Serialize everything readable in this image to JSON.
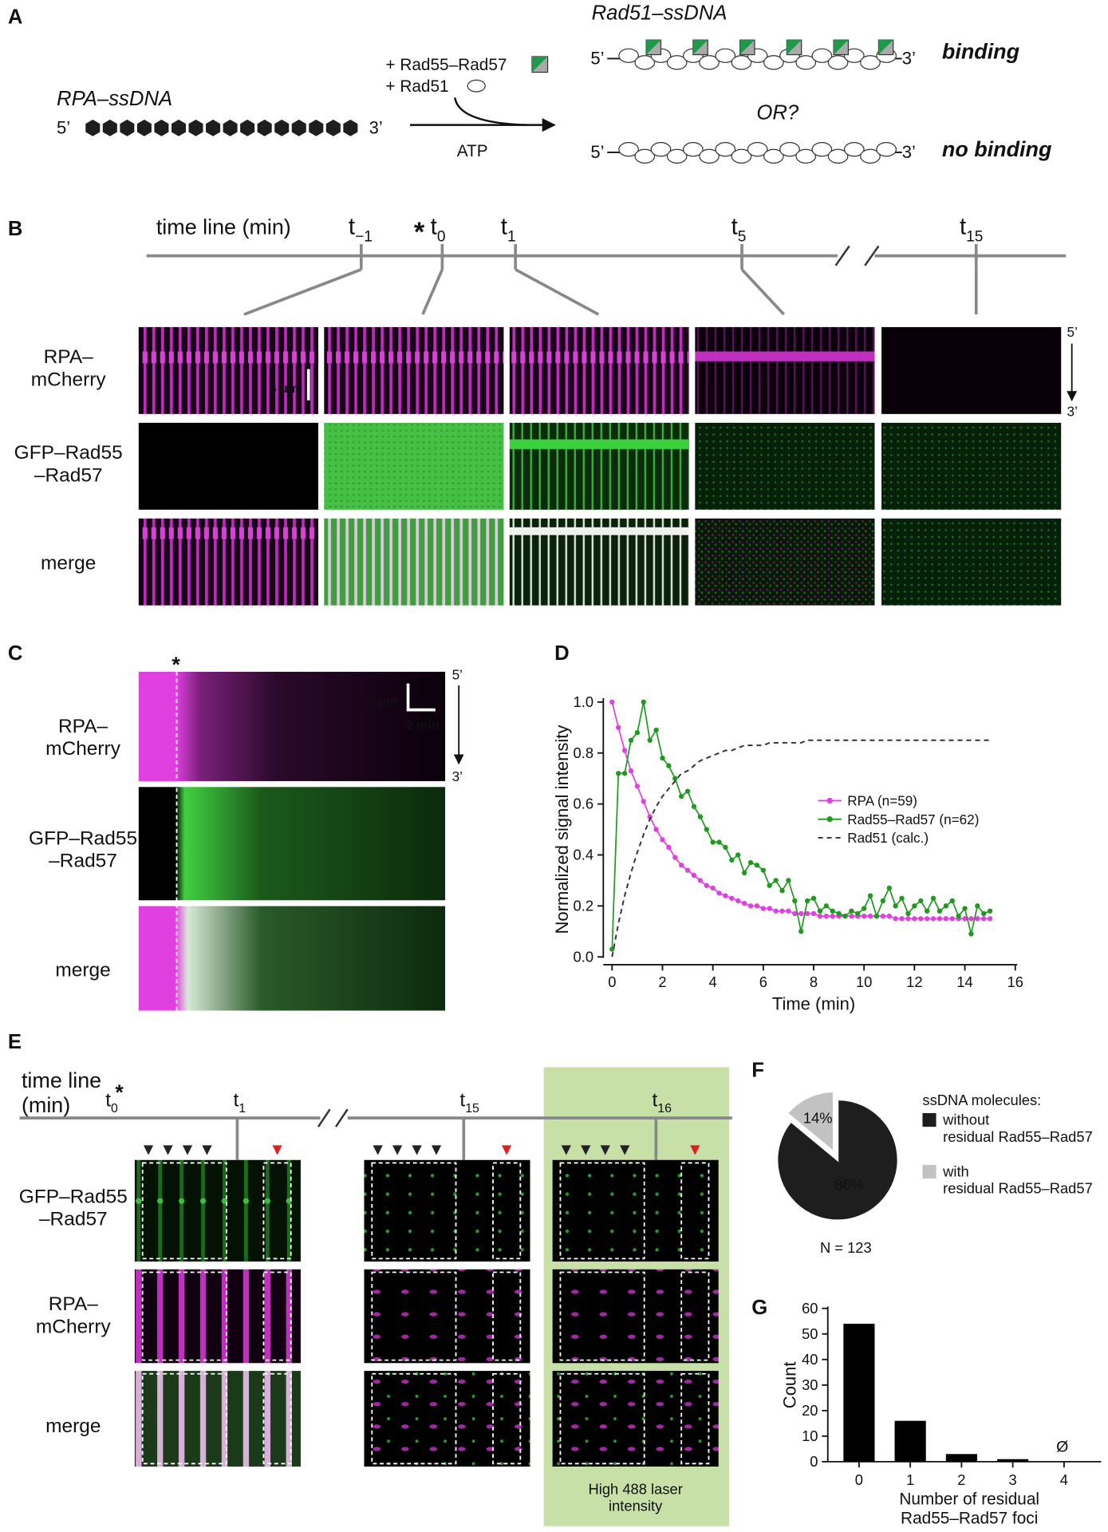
{
  "panels": {
    "A": {
      "letter": "A",
      "rpa_ssdna": "RPA–ssDNA",
      "rad51_ssdna": "Rad51–ssDNA",
      "five": "5’",
      "three": "3’",
      "add_rad55": "+ Rad55–Rad57",
      "add_rad51": "+ Rad51",
      "atp": "ATP",
      "binding": "binding",
      "or": "OR?",
      "no_binding": "no binding"
    },
    "B": {
      "letter": "B",
      "timeline": "time line (min)",
      "star": "*",
      "times": [
        {
          "t": "t",
          "sub": "−1"
        },
        {
          "t": "t",
          "sub": "0"
        },
        {
          "t": "t",
          "sub": "1"
        },
        {
          "t": "t",
          "sub": "5"
        },
        {
          "t": "t",
          "sub": "15"
        }
      ],
      "rows": [
        "RPA–\nmCherry",
        "GFP–Rad55\n–Rad57",
        "merge"
      ],
      "scale": "6 μm",
      "five": "5’",
      "three": "3’"
    },
    "C": {
      "letter": "C",
      "star": "*",
      "rows": [
        "RPA–\nmCherry",
        "GFP–Rad55\n–Rad57",
        "merge"
      ],
      "scale_y": "3 μm",
      "scale_x": "2 min",
      "five": "5’",
      "three": "3’"
    },
    "E": {
      "letter": "E",
      "timeline": "time line\n(min)",
      "star": "*",
      "times": [
        {
          "t": "t",
          "sub": "0"
        },
        {
          "t": "t",
          "sub": "1"
        },
        {
          "t": "t",
          "sub": "15"
        },
        {
          "t": "t",
          "sub": "16"
        }
      ],
      "rows": [
        "GFP–Rad55\n–Rad57",
        "RPA–\nmCherry",
        "merge"
      ],
      "high_laser": "High 488 laser\nintensity"
    }
  },
  "chart_data": [
    {
      "type": "line",
      "panel": "D",
      "xlabel": "Time (min)",
      "ylabel": "Normalized signal intensity",
      "xlim": [
        0,
        16
      ],
      "xticks": [
        0,
        2,
        4,
        6,
        8,
        10,
        12,
        14,
        16
      ],
      "ylim": [
        0,
        1
      ],
      "yticks": [
        {
          "value": 0,
          "label": "0.0"
        },
        0.2,
        0.4,
        0.6,
        0.8,
        {
          "value": 1,
          "label": "1.0"
        }
      ],
      "x": [
        0,
        0.25,
        0.5,
        0.75,
        1,
        1.25,
        1.5,
        1.75,
        2,
        2.25,
        2.5,
        2.75,
        3,
        3.25,
        3.5,
        3.75,
        4,
        4.25,
        4.5,
        4.75,
        5,
        5.25,
        5.5,
        5.75,
        6,
        6.25,
        6.5,
        6.75,
        7,
        7.25,
        7.5,
        7.75,
        8,
        8.25,
        8.5,
        8.75,
        9,
        9.25,
        9.5,
        9.75,
        10,
        10.25,
        10.5,
        10.75,
        11,
        11.25,
        11.5,
        11.75,
        12,
        12.25,
        12.5,
        12.75,
        13,
        13.25,
        13.5,
        13.75,
        14,
        14.25,
        14.5,
        14.75,
        15
      ],
      "series": [
        {
          "name": "RPA (n=59)",
          "color": "#e040e0",
          "marker": true,
          "values": [
            1,
            0.9,
            0.81,
            0.73,
            0.67,
            0.61,
            0.55,
            0.5,
            0.46,
            0.43,
            0.39,
            0.36,
            0.34,
            0.32,
            0.3,
            0.28,
            0.27,
            0.25,
            0.24,
            0.23,
            0.22,
            0.21,
            0.2,
            0.2,
            0.19,
            0.19,
            0.18,
            0.18,
            0.18,
            0.17,
            0.17,
            0.17,
            0.17,
            0.16,
            0.16,
            0.16,
            0.16,
            0.16,
            0.16,
            0.16,
            0.16,
            0.16,
            0.16,
            0.16,
            0.16,
            0.15,
            0.15,
            0.15,
            0.15,
            0.15,
            0.15,
            0.15,
            0.15,
            0.15,
            0.15,
            0.15,
            0.15,
            0.15,
            0.15,
            0.15,
            0.15
          ]
        },
        {
          "name": "Rad55–Rad57 (n=62)",
          "color": "#1f9a1f",
          "marker": true,
          "values": [
            0.03,
            0.72,
            0.72,
            0.85,
            0.88,
            1,
            0.85,
            0.89,
            0.78,
            0.75,
            0.7,
            0.63,
            0.65,
            0.59,
            0.55,
            0.5,
            0.45,
            0.45,
            0.43,
            0.38,
            0.4,
            0.33,
            0.37,
            0.36,
            0.34,
            0.28,
            0.3,
            0.26,
            0.3,
            0.22,
            0.1,
            0.22,
            0.23,
            0.18,
            0.2,
            0.18,
            0.17,
            0.16,
            0.18,
            0.17,
            0.19,
            0.24,
            0.16,
            0.22,
            0.27,
            0.2,
            0.23,
            0.17,
            0.2,
            0.22,
            0.18,
            0.23,
            0.18,
            0.2,
            0.22,
            0.16,
            0.19,
            0.09,
            0.2,
            0.17,
            0.18
          ]
        },
        {
          "name": "Rad51 (calc.)",
          "color": "#333333",
          "dashed": true,
          "values": [
            0,
            0.13,
            0.24,
            0.33,
            0.41,
            0.48,
            0.54,
            0.59,
            0.63,
            0.66,
            0.69,
            0.72,
            0.73,
            0.75,
            0.77,
            0.78,
            0.79,
            0.8,
            0.81,
            0.81,
            0.82,
            0.83,
            0.83,
            0.83,
            0.83,
            0.84,
            0.84,
            0.84,
            0.84,
            0.84,
            0.84,
            0.85,
            0.85,
            0.85,
            0.85,
            0.85,
            0.85,
            0.85,
            0.85,
            0.85,
            0.85,
            0.85,
            0.85,
            0.85,
            0.85,
            0.85,
            0.85,
            0.85,
            0.85,
            0.85,
            0.85,
            0.85,
            0.85,
            0.85,
            0.85,
            0.85,
            0.85,
            0.85,
            0.85,
            0.85,
            0.85
          ]
        }
      ]
    },
    {
      "type": "pie",
      "panel": "F",
      "legend_title": "ssDNA molecules:",
      "categories": [
        "without\nresidual Rad55–Rad57",
        "with\nresidual Rad55–Rad57"
      ],
      "values": [
        86,
        14
      ],
      "value_labels": [
        "86%",
        "14%"
      ],
      "colors": [
        "#1e1e1e",
        "#c2c2c2"
      ],
      "note": "N = 123"
    },
    {
      "type": "bar",
      "panel": "G",
      "xlabel": "Number of residual\nRad55–Rad57 foci",
      "ylabel": "Count",
      "categories": [
        "0",
        "1",
        "2",
        "3",
        "4"
      ],
      "values": [
        54,
        16,
        3,
        1,
        0
      ],
      "color": "#000000",
      "annotation": "Ø",
      "ylim": [
        0,
        60
      ],
      "yticks": [
        0,
        10,
        20,
        30,
        40,
        50,
        60
      ]
    }
  ]
}
